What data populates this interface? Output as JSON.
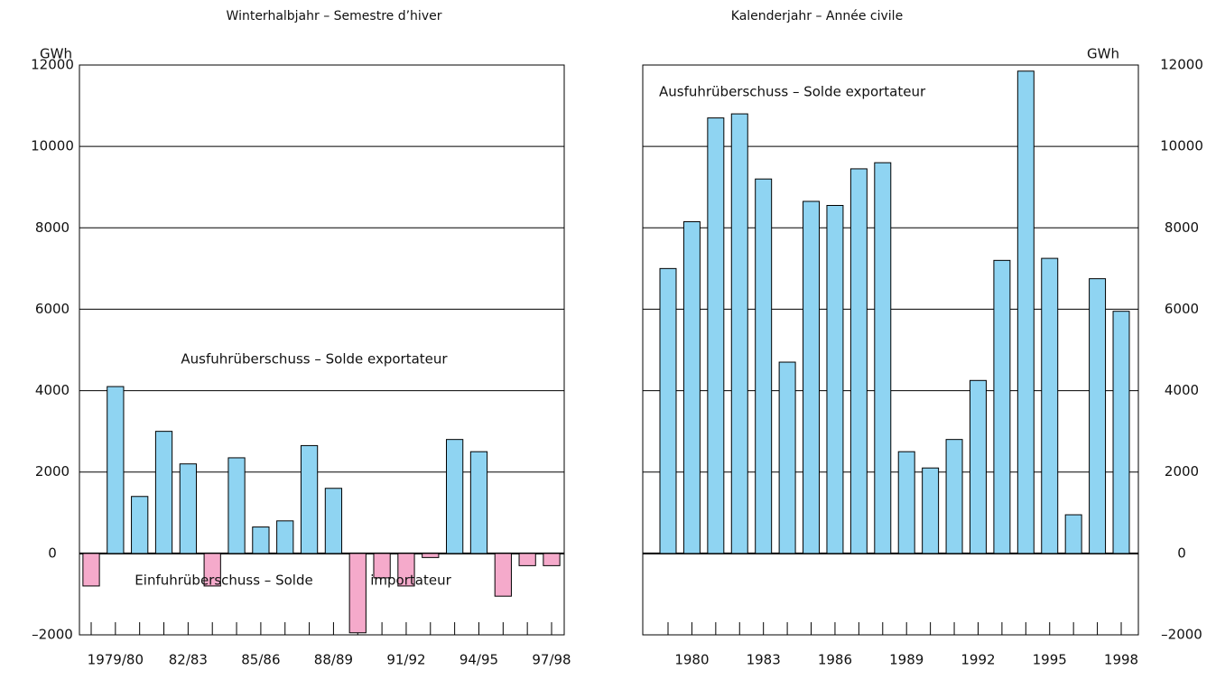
{
  "chart_data": [
    {
      "type": "bar",
      "title": "Winterhalbjahr – Semestre d’hiver",
      "y_label": "GWh",
      "y_axis_position": "left",
      "categories": [
        null,
        "1979/80",
        null,
        null,
        "82/83",
        null,
        null,
        "85/86",
        null,
        null,
        "88/89",
        null,
        null,
        "91/92",
        null,
        null,
        "94/95",
        null,
        null,
        "97/98"
      ],
      "values": [
        -800,
        4100,
        1400,
        3000,
        2200,
        -800,
        2350,
        650,
        800,
        2650,
        1600,
        -1950,
        -600,
        -800,
        -100,
        2800,
        2500,
        -1050,
        -300,
        -300
      ],
      "positive_color": "#8fd4f2",
      "negative_color": "#f5aacb",
      "ylim": [
        -2000,
        12000
      ],
      "yticks": [
        {
          "value": -2000,
          "label": "–2000"
        },
        0,
        2000,
        4000,
        6000,
        8000,
        10000,
        12000
      ],
      "grid": true,
      "annotations": [
        "Ausfuhrüberschuss – Solde exportateur",
        "Einfuhrüberschuss – Solde",
        "importateur"
      ]
    },
    {
      "type": "bar",
      "title": "Kalenderjahr – Année civile",
      "y_label": "GWh",
      "y_axis_position": "right",
      "categories": [
        null,
        "1980",
        null,
        null,
        "1983",
        null,
        null,
        "1986",
        null,
        null,
        "1989",
        null,
        null,
        "1992",
        null,
        null,
        "1995",
        null,
        null,
        "1998"
      ],
      "values": [
        7000,
        8150,
        10700,
        10800,
        9200,
        4700,
        8650,
        8550,
        9450,
        9600,
        2500,
        2100,
        2800,
        4250,
        7200,
        11850,
        7250,
        950,
        6750,
        5950
      ],
      "positive_color": "#8fd4f2",
      "negative_color": "#f5aacb",
      "ylim": [
        -2000,
        12000
      ],
      "yticks": [
        {
          "value": -2000,
          "label": "–2000"
        },
        0,
        2000,
        4000,
        6000,
        8000,
        10000,
        12000
      ],
      "grid": true,
      "annotations": [
        "Ausfuhrüberschuss – Solde exportateur"
      ]
    }
  ]
}
